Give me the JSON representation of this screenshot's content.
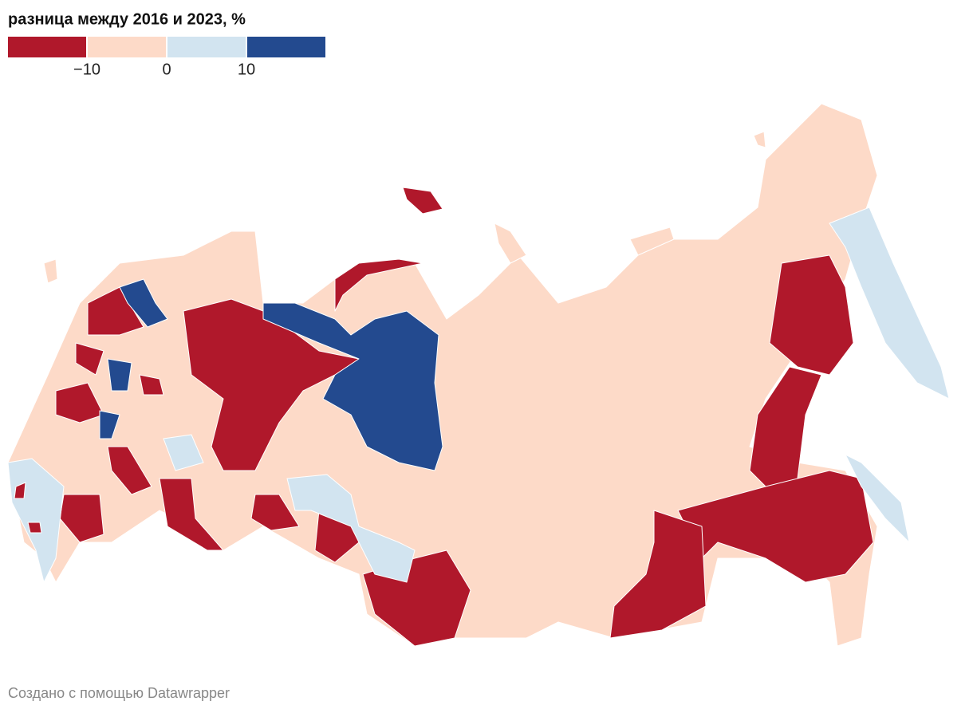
{
  "legend": {
    "title": "разница между 2016 и 2023, %",
    "colors": [
      "#b0182b",
      "#fddac8",
      "#d2e4f0",
      "#234a8f"
    ],
    "ticks": [
      {
        "value": -10,
        "label": "−10"
      },
      0,
      10
    ]
  },
  "footer": "Создано с помощью Datawrapper"
}
